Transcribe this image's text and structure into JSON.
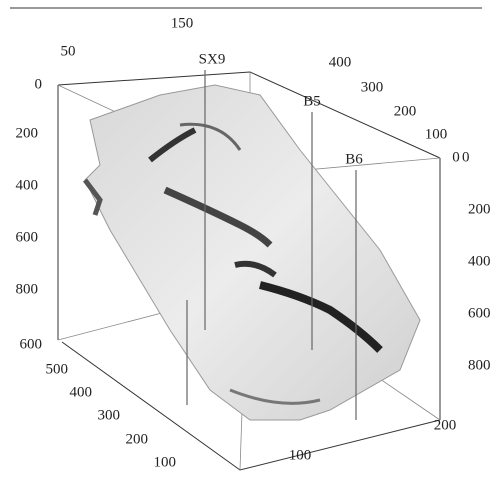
{
  "axes": {
    "top_left": {
      "ticks": [
        50,
        150
      ]
    },
    "top_right": {
      "ticks": [
        400,
        300,
        200,
        100,
        0
      ]
    },
    "left_depth": {
      "ticks": [
        0,
        200,
        400,
        600,
        800
      ]
    },
    "right_depth": {
      "ticks": [
        0,
        200,
        400,
        600,
        800
      ]
    },
    "bottom_left": {
      "ticks": [
        600,
        500,
        400,
        300,
        200,
        100
      ]
    },
    "bottom_right": {
      "ticks": [
        100,
        200
      ]
    }
  },
  "wells": [
    "SX9",
    "B5",
    "B6"
  ]
}
